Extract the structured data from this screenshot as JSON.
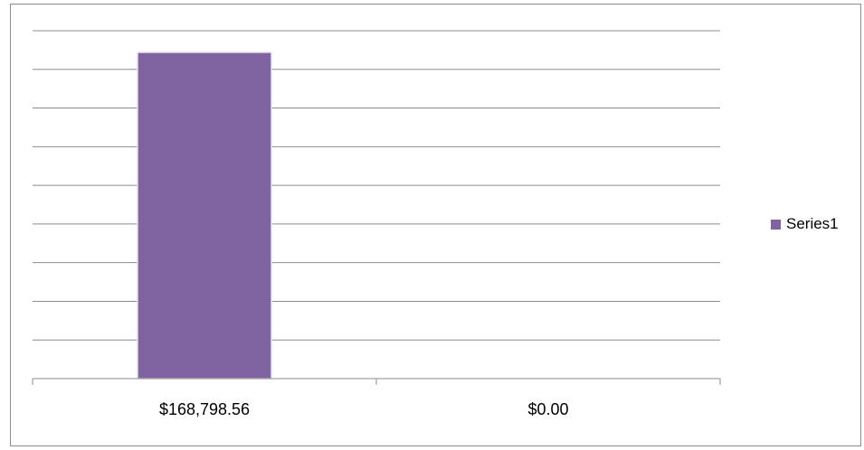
{
  "chart_data": {
    "type": "bar",
    "categories": [
      "$168,798.56",
      "$0.00"
    ],
    "series": [
      {
        "name": "Series1",
        "values": [
          168798.56,
          0
        ],
        "color": "#8064A2"
      }
    ],
    "ylim": [
      0,
      180000
    ],
    "grid": true,
    "y_axis_labels_shown": false,
    "legend_position": "right"
  }
}
